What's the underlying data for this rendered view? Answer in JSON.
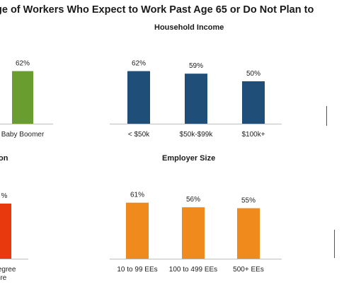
{
  "title": "ge of Workers Who Expect to Work Past Age 65 or Do Not Plan to",
  "colors": {
    "green": "#6a9d2f",
    "navy": "#1f4e79",
    "red": "#e8380d",
    "orange": "#f08a1c"
  },
  "chart_data": [
    {
      "id": "generation",
      "type": "bar",
      "title": "",
      "categories": [
        "Baby Boomer"
      ],
      "values": [
        62
      ],
      "value_labels": [
        "62%"
      ],
      "color": "#6a9d2f"
    },
    {
      "id": "household_income",
      "type": "bar",
      "title": "Household Income",
      "categories": [
        "< $50k",
        "$50k-$99k",
        "$100k+"
      ],
      "values": [
        62,
        59,
        50
      ],
      "value_labels": [
        "62%",
        "59%",
        "50%"
      ],
      "color": "#1f4e79"
    },
    {
      "id": "education",
      "type": "bar",
      "title": "on",
      "categories": [
        "Degree"
      ],
      "category_line2": [
        "ore"
      ],
      "values": [
        60
      ],
      "value_labels": [
        "%"
      ],
      "color": "#e8380d"
    },
    {
      "id": "employer_size",
      "type": "bar",
      "title": "Employer Size",
      "categories": [
        "10 to 99 EEs",
        "100 to 499 EEs",
        "500+ EEs"
      ],
      "values": [
        61,
        56,
        55
      ],
      "value_labels": [
        "61%",
        "56%",
        "55%"
      ],
      "color": "#f08a1c"
    }
  ]
}
